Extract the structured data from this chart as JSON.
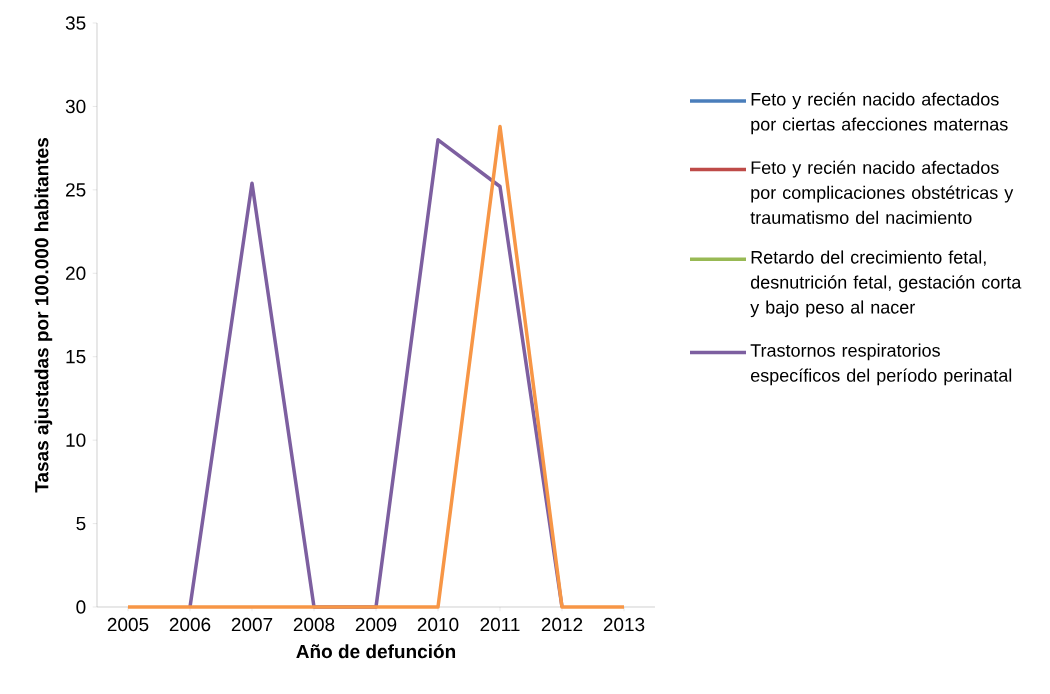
{
  "chart_data": {
    "type": "line",
    "xlabel": "Año de defunción",
    "ylabel": "Tasas ajustadas por 100.000 habitantes",
    "categories": [
      "2005",
      "2006",
      "2007",
      "2008",
      "2009",
      "2010",
      "2011",
      "2012",
      "2013"
    ],
    "series": [
      {
        "name": "Feto y recién nacido afectados por ciertas afecciones maternas",
        "color": "#4a7ebb",
        "values": [
          null,
          null,
          null,
          null,
          null,
          null,
          null,
          null,
          null
        ]
      },
      {
        "name": "Feto y recién nacido afectados por complicaciones obstétricas y traumatismo del nacimiento",
        "color": "#be4b48",
        "values": [
          null,
          null,
          null,
          null,
          null,
          null,
          null,
          null,
          null
        ]
      },
      {
        "name": "Retardo del crecimiento fetal, desnutrición fetal, gestación corta y bajo peso al nacer",
        "color": "#98b954",
        "values": [
          null,
          null,
          null,
          null,
          null,
          null,
          null,
          null,
          null
        ]
      },
      {
        "name": "Trastornos respiratorios específicos del período perinatal",
        "color": "#7d5fa0",
        "values": [
          null,
          0,
          25.4,
          0,
          0,
          28,
          25.2,
          0,
          null
        ]
      },
      {
        "color": "#f79646",
        "values": [
          0,
          0,
          0,
          0,
          0,
          0,
          28.8,
          0,
          0
        ]
      }
    ],
    "ylim": [
      0,
      35
    ],
    "yticks": [
      0,
      5,
      10,
      15,
      20,
      25,
      30,
      35
    ],
    "grid": false,
    "legend": "right",
    "marker": "none",
    "line_style": "solid"
  }
}
